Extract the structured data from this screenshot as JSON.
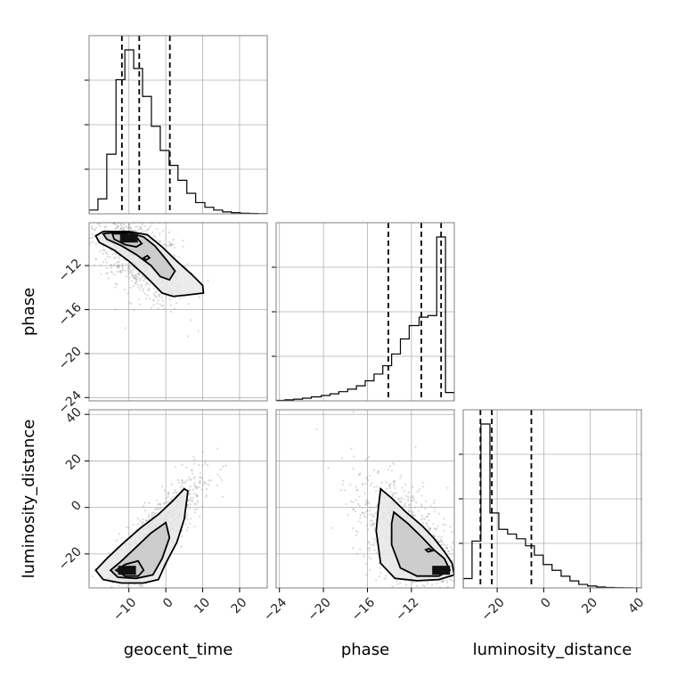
{
  "colors": {
    "line": "#000000",
    "grid": "#b0b0b0",
    "frame": "#808080",
    "scatter": "#7a7a7a",
    "fill_low": "#e8e8e8",
    "fill_mid": "#c8c8c8",
    "fill_high": "#111111"
  },
  "chart_data": {
    "type": "corner",
    "parameters": [
      "geocent_time",
      "phase",
      "luminosity_distance"
    ],
    "ranges": {
      "geocent_time": [
        -20.8,
        27.5
      ],
      "phase": [
        -24.3,
        -8.1
      ],
      "luminosity_distance": [
        -34.6,
        42.0
      ]
    },
    "ticks": {
      "geocent_time": [
        -10,
        0,
        10,
        20
      ],
      "phase": [
        -24,
        -20,
        -16,
        -12
      ],
      "luminosity_distance": [
        -20,
        0,
        20,
        40
      ]
    },
    "tick_labels": {
      "geocent_time": [
        "−10",
        "0",
        "10",
        "20"
      ],
      "phase": [
        "−24",
        "−20",
        "−16",
        "−12"
      ],
      "luminosity_distance": [
        "−20",
        "0",
        "20",
        "40"
      ]
    },
    "grid": true,
    "quantiles": {
      "geocent_time": [
        -11.9,
        -7.2,
        1.1
      ],
      "phase": [
        -14.1,
        -11.1,
        -9.3
      ],
      "luminosity_distance": [
        -27.2,
        -22.3,
        -5.3
      ]
    },
    "histograms": {
      "geocent_time": {
        "edges": [
          -20.8,
          -18.4,
          -16.0,
          -13.5,
          -11.1,
          -8.7,
          -6.3,
          -3.9,
          -1.5,
          0.9,
          3.3,
          5.7,
          8.1,
          10.6,
          13.0,
          15.4,
          17.8,
          20.2,
          22.6,
          25.0,
          27.5
        ],
        "counts": [
          0.02,
          0.08,
          0.32,
          0.72,
          0.88,
          0.78,
          0.63,
          0.47,
          0.34,
          0.26,
          0.18,
          0.11,
          0.06,
          0.035,
          0.02,
          0.01,
          0.006,
          0.003,
          0.002,
          0.001
        ]
      },
      "phase": {
        "edges": [
          -24.3,
          -23.5,
          -22.7,
          -21.9,
          -21.1,
          -20.2,
          -19.4,
          -18.6,
          -17.8,
          -17.0,
          -16.2,
          -15.4,
          -14.6,
          -13.8,
          -13.0,
          -12.2,
          -11.3,
          -10.5,
          -9.7,
          -8.9,
          -8.1
        ],
        "counts": [
          0.003,
          0.006,
          0.01,
          0.016,
          0.024,
          0.032,
          0.042,
          0.055,
          0.07,
          0.09,
          0.12,
          0.16,
          0.21,
          0.28,
          0.37,
          0.45,
          0.5,
          0.51,
          0.98,
          0.05
        ]
      },
      "luminosity_distance": {
        "edges": [
          -34.6,
          -30.8,
          -27.0,
          -23.1,
          -19.3,
          -15.5,
          -11.7,
          -7.8,
          -4.0,
          -0.2,
          3.6,
          7.5,
          11.3,
          15.1,
          18.9,
          22.8,
          26.6,
          30.4,
          34.2,
          38.1,
          42.0
        ],
        "counts": [
          0.04,
          0.2,
          0.7,
          0.32,
          0.25,
          0.23,
          0.21,
          0.18,
          0.14,
          0.1,
          0.075,
          0.05,
          0.03,
          0.015,
          0.008,
          0.004,
          0.002,
          0.001,
          0.0005,
          0.0003
        ]
      }
    },
    "pairs": [
      {
        "x": "geocent_time",
        "y": "phase",
        "correlation": -0.55,
        "center": [
          -7.5,
          -11.0
        ],
        "spread": [
          6.0,
          2.2
        ],
        "mode": [
          -10.0,
          -9.5
        ],
        "contours": [
          [
            [
              -19.0,
              -9.3
            ],
            [
              -17.0,
              -8.9
            ],
            [
              -14.0,
              -8.9
            ],
            [
              -10.0,
              -8.9
            ],
            [
              -5.0,
              -9.2
            ],
            [
              -1.0,
              -10.3
            ],
            [
              3.0,
              -11.6
            ],
            [
              7.0,
              -12.8
            ],
            [
              10.0,
              -13.8
            ],
            [
              10.2,
              -14.5
            ],
            [
              5.0,
              -14.7
            ],
            [
              2.0,
              -14.8
            ],
            [
              -1.0,
              -14.5
            ],
            [
              -3.0,
              -13.8
            ],
            [
              -6.0,
              -12.8
            ],
            [
              -10.0,
              -11.6
            ],
            [
              -14.0,
              -10.6
            ],
            [
              -18.0,
              -9.9
            ],
            [
              -19.0,
              -9.3
            ]
          ],
          [
            [
              -17.0,
              -9.1
            ],
            [
              -14.0,
              -9.0
            ],
            [
              -10.0,
              -9.0
            ],
            [
              -6.0,
              -9.4
            ],
            [
              -3.0,
              -10.2
            ],
            [
              0.0,
              -11.4
            ],
            [
              2.5,
              -12.5
            ],
            [
              1.0,
              -13.3
            ],
            [
              -1.5,
              -13.0
            ],
            [
              -4.0,
              -12.0
            ],
            [
              -8.0,
              -11.0
            ],
            [
              -12.0,
              -10.2
            ],
            [
              -16.0,
              -9.6
            ],
            [
              -17.0,
              -9.1
            ]
          ],
          [
            [
              -14.5,
              -9.1
            ],
            [
              -11.0,
              -9.1
            ],
            [
              -8.0,
              -9.4
            ],
            [
              -6.5,
              -10.0
            ],
            [
              -8.0,
              -10.3
            ],
            [
              -11.0,
              -10.1
            ],
            [
              -14.0,
              -9.6
            ],
            [
              -14.5,
              -9.1
            ]
          ],
          [
            [
              -6.0,
              -11.3
            ],
            [
              -5.0,
              -11.1
            ],
            [
              -4.4,
              -11.3
            ],
            [
              -5.4,
              -11.5
            ],
            [
              -6.0,
              -11.3
            ]
          ]
        ]
      },
      {
        "x": "geocent_time",
        "y": "luminosity_distance",
        "correlation": 0.85,
        "center": [
          -3.0,
          -12.0
        ],
        "spread": [
          6.5,
          13.0
        ],
        "mode": [
          -10.5,
          -27.0
        ],
        "contours": [
          [
            [
              -19.0,
              -27.0
            ],
            [
              -16.0,
              -22.0
            ],
            [
              -12.0,
              -16.0
            ],
            [
              -7.0,
              -9.0
            ],
            [
              -2.0,
              -3.0
            ],
            [
              2.0,
              3.0
            ],
            [
              5.0,
              8.0
            ],
            [
              6.0,
              7.0
            ],
            [
              5.0,
              -5.0
            ],
            [
              3.0,
              -15.0
            ],
            [
              0.0,
              -24.0
            ],
            [
              -2.0,
              -31.0
            ],
            [
              -6.0,
              -32.5
            ],
            [
              -12.0,
              -32.5
            ],
            [
              -17.0,
              -31.0
            ],
            [
              -19.0,
              -27.0
            ]
          ],
          [
            [
              -15.0,
              -27.0
            ],
            [
              -12.0,
              -23.0
            ],
            [
              -8.0,
              -17.0
            ],
            [
              -4.0,
              -11.0
            ],
            [
              0.0,
              -6.5
            ],
            [
              1.0,
              -13.0
            ],
            [
              -1.0,
              -22.0
            ],
            [
              -3.5,
              -29.0
            ],
            [
              -8.0,
              -30.5
            ],
            [
              -13.0,
              -30.0
            ],
            [
              -15.0,
              -27.0
            ]
          ],
          [
            [
              -13.5,
              -27.0
            ],
            [
              -11.0,
              -24.5
            ],
            [
              -7.5,
              -23.0
            ],
            [
              -6.0,
              -27.0
            ],
            [
              -7.5,
              -29.5
            ],
            [
              -11.0,
              -29.5
            ],
            [
              -13.5,
              -27.0
            ]
          ]
        ]
      },
      {
        "x": "phase",
        "y": "luminosity_distance",
        "correlation": -0.5,
        "center": [
          -12.5,
          -12.0
        ],
        "spread": [
          2.4,
          13.0
        ],
        "mode": [
          -9.3,
          -27.0
        ],
        "contours": [
          [
            [
              -14.8,
              8.0
            ],
            [
              -13.8,
              4.0
            ],
            [
              -12.5,
              -2.0
            ],
            [
              -11.0,
              -8.0
            ],
            [
              -10.0,
              -13.0
            ],
            [
              -9.0,
              -19.0
            ],
            [
              -8.3,
              -24.0
            ],
            [
              -8.1,
              -29.0
            ],
            [
              -9.5,
              -31.0
            ],
            [
              -11.5,
              -31.5
            ],
            [
              -13.5,
              -30.5
            ],
            [
              -14.8,
              -24.0
            ],
            [
              -15.2,
              -10.0
            ],
            [
              -15.0,
              0.0
            ],
            [
              -14.8,
              8.0
            ]
          ],
          [
            [
              -13.6,
              -2.0
            ],
            [
              -12.3,
              -7.0
            ],
            [
              -11.0,
              -13.0
            ],
            [
              -10.0,
              -18.0
            ],
            [
              -9.0,
              -22.0
            ],
            [
              -8.5,
              -27.0
            ],
            [
              -9.5,
              -29.5
            ],
            [
              -11.5,
              -29.5
            ],
            [
              -13.0,
              -26.0
            ],
            [
              -13.8,
              -16.0
            ],
            [
              -13.8,
              -7.0
            ],
            [
              -13.6,
              -2.0
            ]
          ],
          [
            [
              -10.7,
              -18.2
            ],
            [
              -10.4,
              -17.7
            ],
            [
              -10.1,
              -18.6
            ],
            [
              -10.5,
              -19.1
            ],
            [
              -10.7,
              -18.2
            ]
          ]
        ]
      }
    ]
  }
}
